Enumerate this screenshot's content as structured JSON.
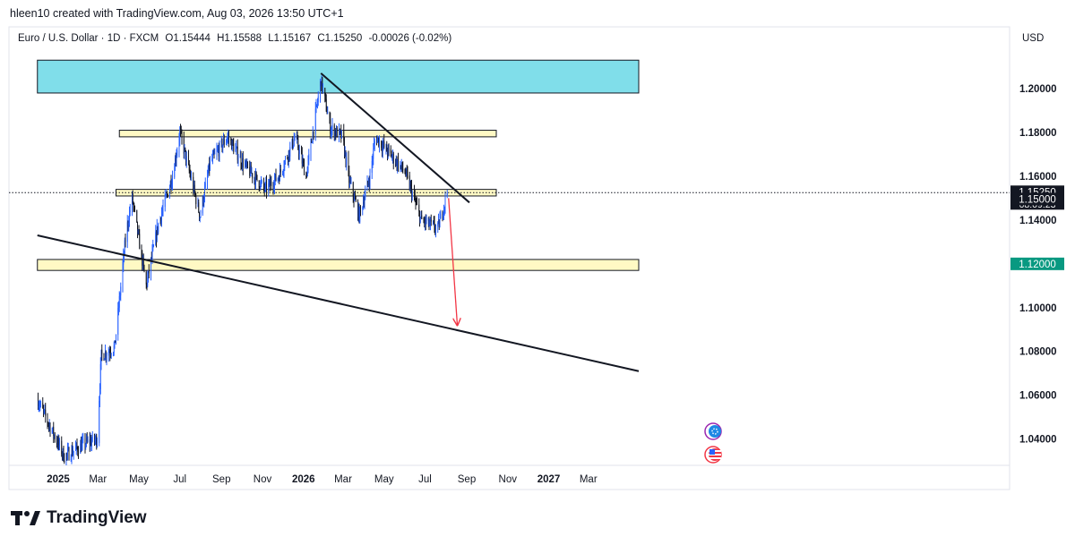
{
  "header": {
    "attribution": "hleen10 created with TradingView.com, Aug 03, 2026 13:50 UTC+1"
  },
  "legend": {
    "symbol": "Euro / U.S. Dollar · 1D · FXCM",
    "open": "O1.15444",
    "high": "H1.15588",
    "low": "L1.15167",
    "close": "C1.15250",
    "change": "-0.00026 (-0.02%)"
  },
  "currency": "USD",
  "footer": {
    "brand": "TradingView"
  },
  "colors": {
    "up": "#2962ff",
    "down": "#131722",
    "resistance_zone": "#80deea",
    "support_zone": "#fff9c4",
    "arrow": "#f23645",
    "price_tag_bg": "#131722",
    "support_tag_bg": "#089981"
  },
  "chart_data": {
    "type": "candlestick",
    "symbol": "EURUSD",
    "timeframe": "1D",
    "ylim": [
      1.028,
      1.218
    ],
    "y_ticks": [
      "1.04000",
      "1.06000",
      "1.08000",
      "1.10000",
      "1.12000",
      "1.14000",
      "1.16000",
      "1.18000",
      "1.20000"
    ],
    "x_ticks": [
      {
        "label": "2025",
        "date": "2025-01-01",
        "bold": true
      },
      {
        "label": "Mar",
        "date": "2025-03-01",
        "bold": false
      },
      {
        "label": "May",
        "date": "2025-05-01",
        "bold": false
      },
      {
        "label": "Jul",
        "date": "2025-07-01",
        "bold": false
      },
      {
        "label": "Sep",
        "date": "2025-09-01",
        "bold": false
      },
      {
        "label": "Nov",
        "date": "2025-11-01",
        "bold": false
      },
      {
        "label": "2026",
        "date": "2026-01-01",
        "bold": true
      },
      {
        "label": "Mar",
        "date": "2026-03-01",
        "bold": false
      },
      {
        "label": "May",
        "date": "2026-05-01",
        "bold": false
      },
      {
        "label": "Jul",
        "date": "2026-07-01",
        "bold": false
      },
      {
        "label": "Sep",
        "date": "2026-09-01",
        "bold": false
      },
      {
        "label": "Nov",
        "date": "2026-11-01",
        "bold": false
      },
      {
        "label": "2027",
        "date": "2027-01-01",
        "bold": true
      },
      {
        "label": "Mar",
        "date": "2027-03-01",
        "bold": false
      }
    ],
    "price_path": [
      [
        "2024-12-01",
        1.058
      ],
      [
        "2025-01-10",
        1.032
      ],
      [
        "2025-02-10",
        1.038
      ],
      [
        "2025-02-28",
        1.04
      ],
      [
        "2025-03-06",
        1.078
      ],
      [
        "2025-03-26",
        1.082
      ],
      [
        "2025-04-12",
        1.134
      ],
      [
        "2025-04-21",
        1.15
      ],
      [
        "2025-05-12",
        1.11
      ],
      [
        "2025-05-30",
        1.138
      ],
      [
        "2025-06-20",
        1.16
      ],
      [
        "2025-07-01",
        1.18
      ],
      [
        "2025-07-31",
        1.142
      ],
      [
        "2025-08-15",
        1.166
      ],
      [
        "2025-09-10",
        1.178
      ],
      [
        "2025-10-05",
        1.165
      ],
      [
        "2025-11-05",
        1.154
      ],
      [
        "2025-11-25",
        1.16
      ],
      [
        "2025-12-20",
        1.178
      ],
      [
        "2026-01-05",
        1.16
      ],
      [
        "2026-01-27",
        1.204
      ],
      [
        "2026-02-10",
        1.182
      ],
      [
        "2026-02-28",
        1.178
      ],
      [
        "2026-03-10",
        1.158
      ],
      [
        "2026-03-25",
        1.142
      ],
      [
        "2026-04-10",
        1.16
      ],
      [
        "2026-04-18",
        1.178
      ],
      [
        "2026-05-10",
        1.17
      ],
      [
        "2026-06-01",
        1.162
      ],
      [
        "2026-06-25",
        1.14
      ],
      [
        "2026-07-20",
        1.136
      ],
      [
        "2026-08-03",
        1.1525
      ]
    ],
    "annotations": {
      "resistance_zone": {
        "from": "2024-12-01",
        "to": "2027-05-15",
        "y_low": 1.198,
        "y_high": 1.213
      },
      "upper_box": {
        "from": "2025-04-02",
        "to": "2026-10-15",
        "y_low": 1.178,
        "y_high": 1.181
      },
      "middle_box": {
        "from": "2025-03-28",
        "to": "2026-10-15",
        "y_low": 1.151,
        "y_high": 1.154
      },
      "support_zone": {
        "from": "2024-12-01",
        "to": "2027-05-15",
        "y_low": 1.117,
        "y_high": 1.122
      },
      "downtrend_line": {
        "from": [
          "2026-01-27",
          1.207
        ],
        "to": [
          "2026-09-05",
          1.148
        ]
      },
      "long_trend_line": {
        "from": [
          "2024-12-01",
          1.133
        ],
        "to": [
          "2027-05-15",
          1.071
        ]
      },
      "projection_arrow": {
        "from": [
          "2026-08-05",
          1.15
        ],
        "to": [
          "2026-08-18",
          1.092
        ]
      },
      "current_price_line": 1.1525
    },
    "price_axis_labels": {
      "last_price": "1.15250",
      "countdown": "08:09:23",
      "level_1": "1.15000",
      "level_2": "1.12000"
    }
  }
}
